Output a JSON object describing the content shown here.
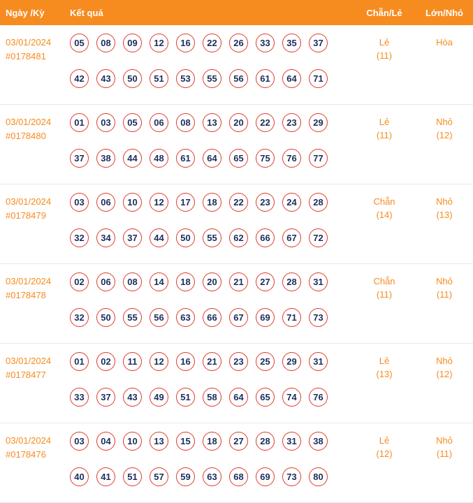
{
  "header": {
    "col_date": "Ngày /Kỳ",
    "col_result": "Kết quả",
    "col_parity": "Chẵn/Lẻ",
    "col_size": "Lớn/Nhỏ"
  },
  "colors": {
    "accent_orange": "#f68b1f",
    "ball_border": "#e13b2c",
    "ball_text": "#1c2c5b"
  },
  "rows": [
    {
      "date": "03/01/2024",
      "id": "#0178481",
      "line1": [
        "05",
        "08",
        "09",
        "12",
        "16",
        "22",
        "26",
        "33",
        "35",
        "37"
      ],
      "line2": [
        "42",
        "43",
        "50",
        "51",
        "53",
        "55",
        "56",
        "61",
        "64",
        "71"
      ],
      "parity": "Lẻ",
      "parity_count": "(11)",
      "size": "Hòa",
      "size_count": ""
    },
    {
      "date": "03/01/2024",
      "id": "#0178480",
      "line1": [
        "01",
        "03",
        "05",
        "06",
        "08",
        "13",
        "20",
        "22",
        "23",
        "29"
      ],
      "line2": [
        "37",
        "38",
        "44",
        "48",
        "61",
        "64",
        "65",
        "75",
        "76",
        "77"
      ],
      "parity": "Lẻ",
      "parity_count": "(11)",
      "size": "Nhỏ",
      "size_count": "(12)"
    },
    {
      "date": "03/01/2024",
      "id": "#0178479",
      "line1": [
        "03",
        "06",
        "10",
        "12",
        "17",
        "18",
        "22",
        "23",
        "24",
        "28"
      ],
      "line2": [
        "32",
        "34",
        "37",
        "44",
        "50",
        "55",
        "62",
        "66",
        "67",
        "72"
      ],
      "parity": "Chẵn",
      "parity_count": "(14)",
      "size": "Nhỏ",
      "size_count": "(13)"
    },
    {
      "date": "03/01/2024",
      "id": "#0178478",
      "line1": [
        "02",
        "06",
        "08",
        "14",
        "18",
        "20",
        "21",
        "27",
        "28",
        "31"
      ],
      "line2": [
        "32",
        "50",
        "55",
        "56",
        "63",
        "66",
        "67",
        "69",
        "71",
        "73"
      ],
      "parity": "Chẵn",
      "parity_count": "(11)",
      "size": "Nhỏ",
      "size_count": "(11)"
    },
    {
      "date": "03/01/2024",
      "id": "#0178477",
      "line1": [
        "01",
        "02",
        "11",
        "12",
        "16",
        "21",
        "23",
        "25",
        "29",
        "31"
      ],
      "line2": [
        "33",
        "37",
        "43",
        "49",
        "51",
        "58",
        "64",
        "65",
        "74",
        "76"
      ],
      "parity": "Lẻ",
      "parity_count": "(13)",
      "size": "Nhỏ",
      "size_count": "(12)"
    },
    {
      "date": "03/01/2024",
      "id": "#0178476",
      "line1": [
        "03",
        "04",
        "10",
        "13",
        "15",
        "18",
        "27",
        "28",
        "31",
        "38"
      ],
      "line2": [
        "40",
        "41",
        "51",
        "57",
        "59",
        "63",
        "68",
        "69",
        "73",
        "80"
      ],
      "parity": "Lẻ",
      "parity_count": "(12)",
      "size": "Nhỏ",
      "size_count": "(11)"
    }
  ]
}
